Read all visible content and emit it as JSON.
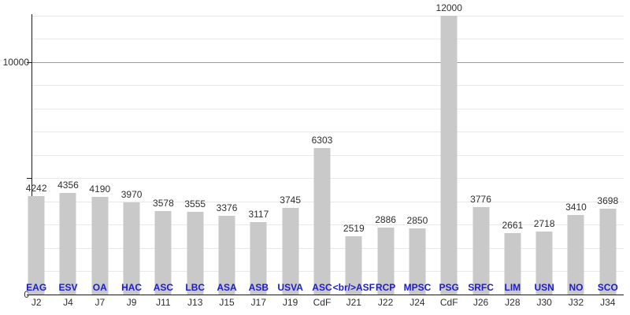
{
  "chart_data": {
    "type": "bar",
    "title": "",
    "categories": [
      "J2",
      "J4",
      "J7",
      "J9",
      "J11",
      "J13",
      "J15",
      "J17",
      "J19",
      "CdF",
      "J21",
      "J22",
      "J24",
      "CdF",
      "J26",
      "J28",
      "J30",
      "J32",
      "J34"
    ],
    "bar_labels": [
      "EAG",
      "ESV",
      "OA",
      "HAC",
      "ASC",
      "LBC",
      "ASA",
      "ASB",
      "USVA",
      "ASC",
      "<br/>ASF",
      "RCP",
      "MPSC",
      "PSG",
      "SRFC",
      "LIM",
      "USN",
      "NO",
      "SCO"
    ],
    "values": [
      4242,
      4356,
      4190,
      3970,
      3578,
      3555,
      3376,
      3117,
      3745,
      6303,
      2519,
      2886,
      2850,
      12000,
      3776,
      2661,
      2718,
      3410,
      3698
    ],
    "xlabel": "",
    "ylabel": "",
    "ylim": [
      0,
      12000
    ],
    "gridline_step": 1000,
    "grid": "on",
    "legend": "none",
    "y_axis": {
      "tick_values": [
        0,
        5000,
        10000
      ],
      "major_gridline_value": 10000,
      "labels": [
        {
          "text": "10000",
          "value": 10000
        },
        {
          "text": "0",
          "value": 0
        }
      ]
    },
    "colors": {
      "bar_fill": "#c9c9c9",
      "value_label": "#2e2e2e",
      "team_label": "#1c1ccc",
      "axis": "#1a1a1a",
      "gridline": "#e8e8e8",
      "gridline_major": "#9a9a9a",
      "background": "#ffffff"
    }
  }
}
